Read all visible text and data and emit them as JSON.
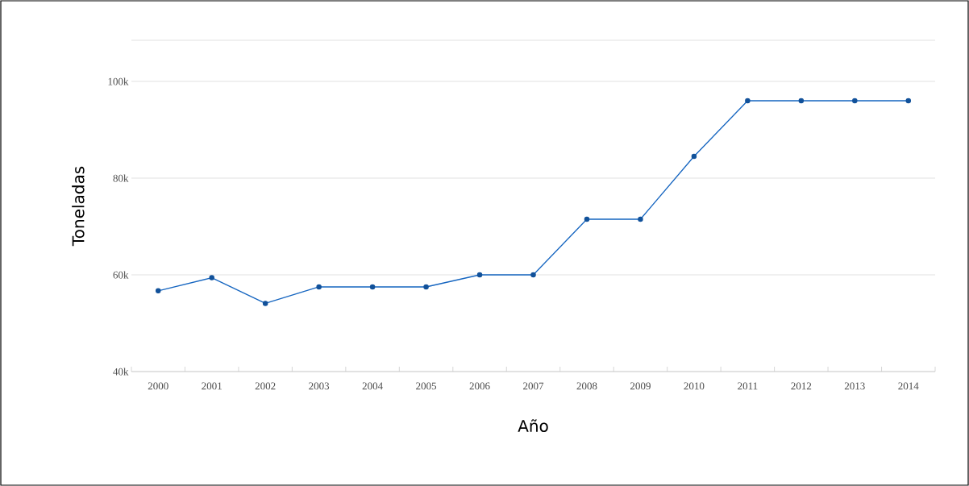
{
  "chart_data": {
    "type": "line",
    "xlabel": "Año",
    "ylabel": "Toneladas",
    "categories": [
      "2000",
      "2001",
      "2002",
      "2003",
      "2004",
      "2005",
      "2006",
      "2007",
      "2008",
      "2009",
      "2010",
      "2011",
      "2012",
      "2013",
      "2014"
    ],
    "series": [
      {
        "color": "#1565c0",
        "values": [
          56700,
          59400,
          54100,
          57500,
          57500,
          57500,
          60000,
          60000,
          71500,
          71500,
          84500,
          96000,
          96000,
          96000,
          96000
        ]
      }
    ],
    "ylim": [
      40000,
      108500
    ],
    "yticks": [
      {
        "value": 40000,
        "label": "40k"
      },
      {
        "value": 60000,
        "label": "60k"
      },
      {
        "value": 80000,
        "label": "80k"
      },
      {
        "value": 100000,
        "label": "100k"
      }
    ],
    "grid": "y",
    "marker": "circle",
    "line_style": "solid"
  }
}
